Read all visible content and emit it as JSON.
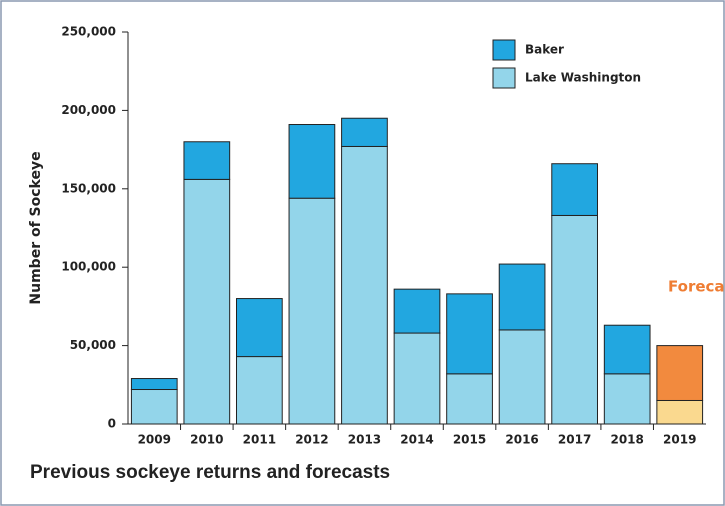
{
  "chart_data": {
    "type": "stacked_bar",
    "title": "Previous sockeye returns and forecasts",
    "y_label": "Number of Sockeye",
    "annotation": "Forecast",
    "categories": [
      "2009",
      "2010",
      "2011",
      "2012",
      "2013",
      "2014",
      "2015",
      "2016",
      "2017",
      "2018",
      "2019"
    ],
    "series": [
      {
        "name": "Lake Washington",
        "color": "#93d5ea",
        "colors": [
          "#93d5ea",
          "#93d5ea",
          "#93d5ea",
          "#93d5ea",
          "#93d5ea",
          "#93d5ea",
          "#93d5ea",
          "#93d5ea",
          "#93d5ea",
          "#93d5ea",
          "#fad98f"
        ],
        "values": [
          22000,
          156000,
          43000,
          144000,
          177000,
          58000,
          32000,
          60000,
          133000,
          32000,
          15000
        ]
      },
      {
        "name": "Baker",
        "color": "#22a7e0",
        "colors": [
          "#22a7e0",
          "#22a7e0",
          "#22a7e0",
          "#22a7e0",
          "#22a7e0",
          "#22a7e0",
          "#22a7e0",
          "#22a7e0",
          "#22a7e0",
          "#22a7e0",
          "#f28a3e"
        ],
        "values": [
          7000,
          24000,
          37000,
          47000,
          18000,
          28000,
          51000,
          42000,
          33000,
          31000,
          35000
        ]
      }
    ],
    "ylim": [
      0,
      250000
    ],
    "yticks": [
      0,
      {
        "value": 50000,
        "label": "50,000"
      },
      {
        "value": 100000,
        "label": "100,000"
      },
      {
        "value": 150000,
        "label": "150,000"
      },
      {
        "value": 200000,
        "label": "200,000"
      },
      {
        "value": 250000,
        "label": "250,000"
      }
    ]
  }
}
